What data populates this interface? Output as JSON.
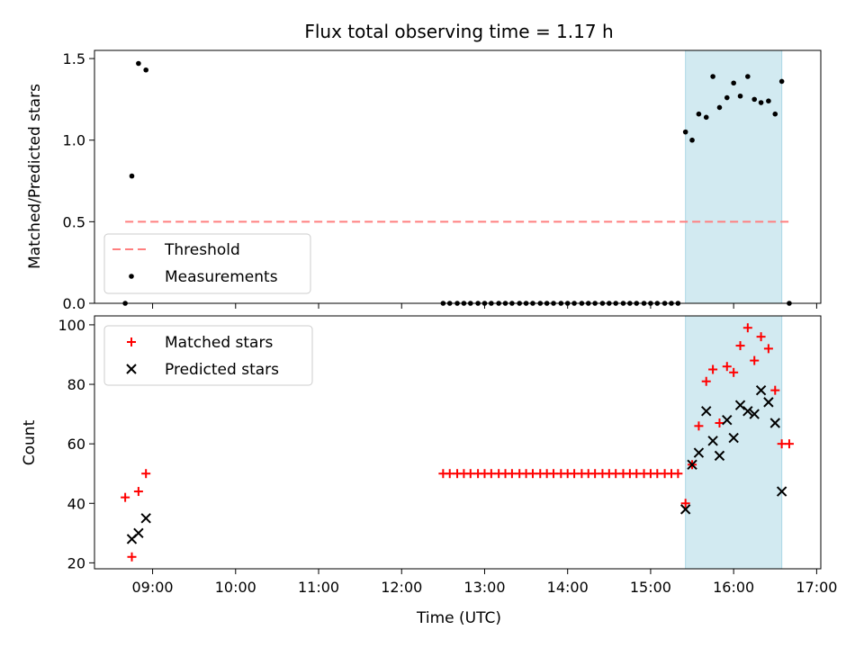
{
  "chart_data": [
    {
      "type": "scatter",
      "title": "Flux total observing time = 1.17 h",
      "ylabel": "Matched/Predicted stars",
      "xlabel": "",
      "ylim": [
        0,
        1.55
      ],
      "yticks": [
        0,
        0.5,
        1.0,
        1.5
      ],
      "ytick_labels": [
        "0.0",
        "0.5",
        "1.0",
        "1.5"
      ],
      "xlim_hours": [
        8.3,
        17.05
      ],
      "shaded_span_hours": [
        15.42,
        16.58
      ],
      "shaded_color": "#add8e6",
      "legend": {
        "placement": "lower-left",
        "entries": [
          "Threshold",
          "Measurements"
        ]
      },
      "series": [
        {
          "name": "Threshold",
          "kind": "dashed-line",
          "color": "#ff7f7f",
          "x_hours": [
            8.67,
            16.67
          ],
          "y": [
            0.5,
            0.5
          ]
        },
        {
          "name": "Measurements",
          "kind": "points",
          "color": "#000000",
          "x_hours": [
            8.67,
            8.75,
            8.83,
            8.92,
            12.5,
            12.58,
            12.67,
            12.75,
            12.83,
            12.92,
            13.0,
            13.08,
            13.17,
            13.25,
            13.33,
            13.42,
            13.5,
            13.58,
            13.67,
            13.75,
            13.83,
            13.92,
            14.0,
            14.08,
            14.17,
            14.25,
            14.33,
            14.42,
            14.5,
            14.58,
            14.67,
            14.75,
            14.83,
            14.92,
            15.0,
            15.08,
            15.17,
            15.25,
            15.33,
            15.42,
            15.5,
            15.58,
            15.67,
            15.75,
            15.83,
            15.92,
            16.0,
            16.08,
            16.17,
            16.25,
            16.33,
            16.42,
            16.5,
            16.58,
            16.67
          ],
          "y": [
            0.0,
            0.78,
            1.47,
            1.43,
            0,
            0,
            0,
            0,
            0,
            0,
            0,
            0,
            0,
            0,
            0,
            0,
            0,
            0,
            0,
            0,
            0,
            0,
            0,
            0,
            0,
            0,
            0,
            0,
            0,
            0,
            0,
            0,
            0,
            0,
            0,
            0,
            0,
            0,
            0,
            1.05,
            1.0,
            1.16,
            1.14,
            1.39,
            1.2,
            1.26,
            1.35,
            1.27,
            1.39,
            1.25,
            1.23,
            1.24,
            1.16,
            1.36,
            0.0
          ]
        }
      ]
    },
    {
      "type": "scatter",
      "title": "",
      "ylabel": "Count",
      "xlabel": "Time (UTC)",
      "ylim": [
        18,
        103
      ],
      "yticks": [
        20,
        40,
        60,
        80,
        100
      ],
      "ytick_labels": [
        "20",
        "40",
        "60",
        "80",
        "100"
      ],
      "xlim_hours": [
        8.3,
        17.05
      ],
      "xticks_hours": [
        9,
        10,
        11,
        12,
        13,
        14,
        15,
        16,
        17
      ],
      "xtick_labels": [
        "09:00",
        "10:00",
        "11:00",
        "12:00",
        "13:00",
        "14:00",
        "15:00",
        "16:00",
        "17:00"
      ],
      "shaded_span_hours": [
        15.42,
        16.58
      ],
      "shaded_color": "#add8e6",
      "legend": {
        "placement": "top-left",
        "entries": [
          "Matched stars",
          "Predicted stars"
        ]
      },
      "series": [
        {
          "name": "Matched stars",
          "marker": "+",
          "color": "#ff0000",
          "x_hours": [
            8.67,
            8.75,
            8.83,
            8.92,
            12.5,
            12.58,
            12.67,
            12.75,
            12.83,
            12.92,
            13.0,
            13.08,
            13.17,
            13.25,
            13.33,
            13.42,
            13.5,
            13.58,
            13.67,
            13.75,
            13.83,
            13.92,
            14.0,
            14.08,
            14.17,
            14.25,
            14.33,
            14.42,
            14.5,
            14.58,
            14.67,
            14.75,
            14.83,
            14.92,
            15.0,
            15.08,
            15.17,
            15.25,
            15.33,
            15.42,
            15.5,
            15.58,
            15.67,
            15.75,
            15.83,
            15.92,
            16.0,
            16.08,
            16.17,
            16.25,
            16.33,
            16.42,
            16.5,
            16.58,
            16.67
          ],
          "y": [
            42,
            22,
            44,
            50,
            50,
            50,
            50,
            50,
            50,
            50,
            50,
            50,
            50,
            50,
            50,
            50,
            50,
            50,
            50,
            50,
            50,
            50,
            50,
            50,
            50,
            50,
            50,
            50,
            50,
            50,
            50,
            50,
            50,
            50,
            50,
            50,
            50,
            50,
            50,
            40,
            53,
            66,
            81,
            85,
            67,
            86,
            84,
            93,
            99,
            88,
            96,
            92,
            78,
            60,
            60
          ]
        },
        {
          "name": "Predicted stars",
          "marker": "x",
          "color": "#000000",
          "x_hours": [
            8.75,
            8.83,
            8.92,
            15.42,
            15.5,
            15.58,
            15.67,
            15.75,
            15.83,
            15.92,
            16.0,
            16.08,
            16.17,
            16.25,
            16.33,
            16.42,
            16.5,
            16.58
          ],
          "y": [
            28,
            30,
            35,
            38,
            53,
            57,
            71,
            61,
            56,
            68,
            62,
            73,
            71,
            70,
            78,
            74,
            67,
            44
          ]
        }
      ]
    }
  ]
}
